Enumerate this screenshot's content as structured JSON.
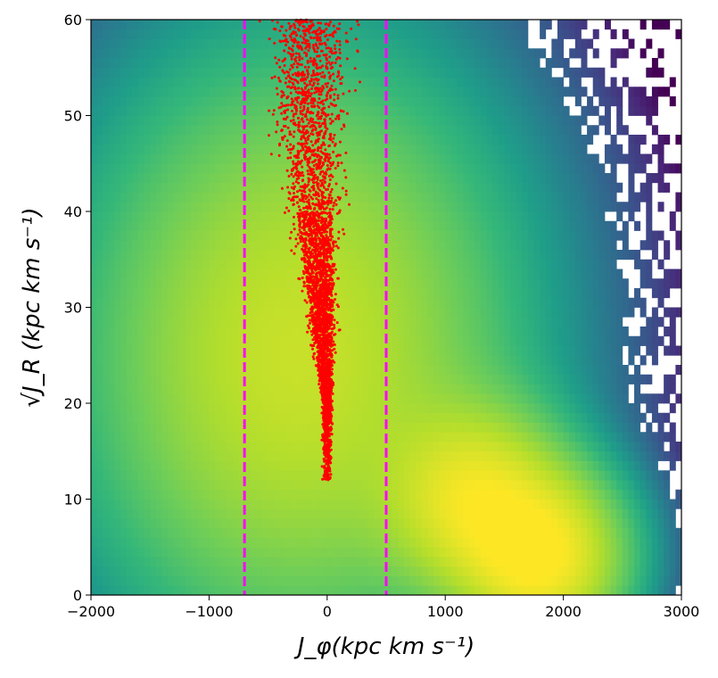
{
  "chart_data": {
    "type": "heatmap",
    "title": "",
    "xlabel": "J_φ(kpc km s⁻¹)",
    "ylabel": "√J_R (kpc km s⁻¹)",
    "xlim": [
      -2000,
      3000
    ],
    "ylim": [
      0,
      60
    ],
    "xticks": [
      -2000,
      -1000,
      0,
      1000,
      2000,
      3000
    ],
    "xtick_labels": [
      "−2000",
      "−1000",
      "0",
      "1000",
      "2000",
      "3000"
    ],
    "yticks": [
      0,
      10,
      20,
      30,
      40,
      50,
      60
    ],
    "ytick_labels": [
      "0",
      "10",
      "20",
      "30",
      "40",
      "50",
      "60"
    ],
    "colormap": "viridis",
    "grid": false,
    "legend": "none",
    "density_components": [
      {
        "center_x": 1800,
        "center_y": 4,
        "spread_x": 380,
        "spread_y": 5,
        "weight": 1.0
      },
      {
        "center_x": 1250,
        "center_y": 10,
        "spread_x": 420,
        "spread_y": 5.5,
        "weight": 0.75
      },
      {
        "center_x": -250,
        "center_y": 25,
        "spread_x": 950,
        "spread_y": 16,
        "weight": 0.55
      }
    ],
    "vertical_lines": [
      {
        "x": -700,
        "color": "#ff00ff",
        "style": "dashed"
      },
      {
        "x": 500,
        "color": "#ff00ff",
        "style": "dashed"
      }
    ],
    "scatter_overlay": {
      "color": "#ff0000",
      "description_points": [
        {
          "x": 0,
          "y": 12
        },
        {
          "x": 0,
          "y": 20
        },
        {
          "x": -50,
          "y": 30
        },
        {
          "x": -100,
          "y": 40
        },
        {
          "x": -150,
          "y": 50
        },
        {
          "x": -150,
          "y": 60
        }
      ],
      "half_width_at_y": [
        {
          "y": 12,
          "w": 40
        },
        {
          "y": 20,
          "w": 60
        },
        {
          "y": 30,
          "w": 170
        },
        {
          "y": 40,
          "w": 280
        },
        {
          "y": 50,
          "w": 380
        },
        {
          "y": 60,
          "w": 470
        }
      ]
    }
  }
}
